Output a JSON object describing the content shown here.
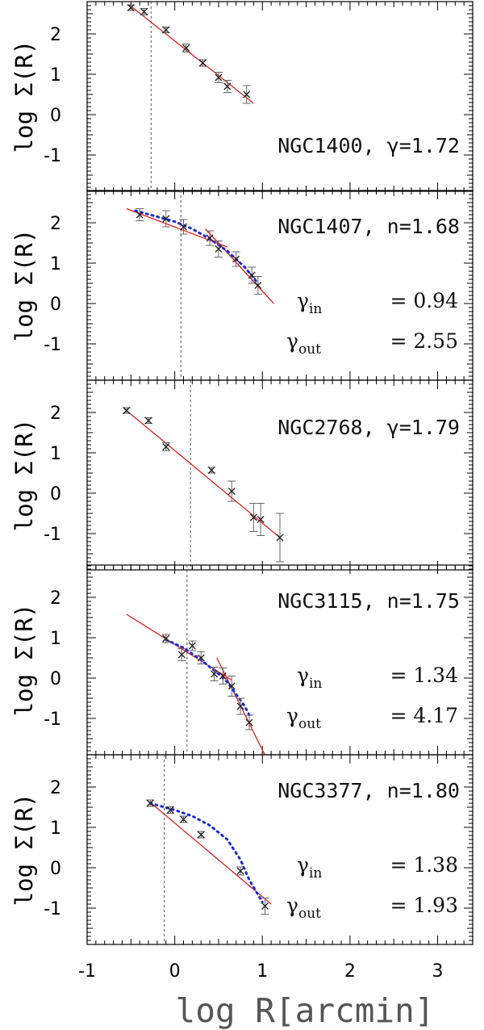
{
  "chart_data": {
    "type": "scatter",
    "x_axis": {
      "label": "log R[arcmin]",
      "range": [
        -1,
        3.4
      ],
      "ticks": [
        "-1",
        "0",
        "1",
        "2",
        "3"
      ]
    },
    "y_axis": {
      "label": "log Σ(R)",
      "range": [
        -1.9,
        2.8
      ],
      "ticks": [
        "2",
        "1",
        "0",
        "-1"
      ]
    },
    "panels": [
      {
        "galaxy": "NGC1400",
        "param": "γ=1.72",
        "vline_x": -0.27,
        "points": [
          {
            "x": -0.5,
            "y": 2.65,
            "err": 0.07
          },
          {
            "x": -0.35,
            "y": 2.55,
            "err": 0.08
          },
          {
            "x": -0.1,
            "y": 2.1,
            "err": 0.07
          },
          {
            "x": 0.13,
            "y": 1.65,
            "err": 0.1
          },
          {
            "x": 0.32,
            "y": 1.28,
            "err": 0.08
          },
          {
            "x": 0.5,
            "y": 0.92,
            "err": 0.13
          },
          {
            "x": 0.6,
            "y": 0.7,
            "err": 0.15
          },
          {
            "x": 0.82,
            "y": 0.5,
            "err": 0.22
          }
        ],
        "fit_lines": [
          {
            "x1": -0.52,
            "y1": 2.72,
            "x2": 0.9,
            "y2": 0.28
          }
        ],
        "dotted_curves": []
      },
      {
        "galaxy": "NGC1407",
        "param": "n=1.68",
        "gamma_in": "0.94",
        "gamma_out": "2.55",
        "vline_x": 0.07,
        "points": [
          {
            "x": -0.4,
            "y": 2.2,
            "err": 0.15
          },
          {
            "x": -0.1,
            "y": 2.1,
            "err": 0.2
          },
          {
            "x": 0.1,
            "y": 1.9,
            "err": 0.18
          },
          {
            "x": 0.4,
            "y": 1.62,
            "err": 0.18
          },
          {
            "x": 0.5,
            "y": 1.35,
            "err": 0.2
          },
          {
            "x": 0.7,
            "y": 1.1,
            "err": 0.18
          },
          {
            "x": 0.88,
            "y": 0.7,
            "err": 0.2
          },
          {
            "x": 0.95,
            "y": 0.45,
            "err": 0.22
          }
        ],
        "fit_lines": [
          {
            "x1": -0.55,
            "y1": 2.35,
            "x2": 0.6,
            "y2": 1.4
          },
          {
            "x1": 0.35,
            "y1": 1.85,
            "x2": 1.13,
            "y2": 0.0
          }
        ],
        "dotted_curves": [
          [
            [
              -0.45,
              2.3
            ],
            [
              -0.2,
              2.15
            ],
            [
              0.0,
              2.03
            ],
            [
              0.2,
              1.85
            ],
            [
              0.4,
              1.6
            ],
            [
              0.6,
              1.3
            ],
            [
              0.8,
              0.9
            ],
            [
              0.93,
              0.55
            ]
          ]
        ]
      },
      {
        "galaxy": "NGC2768",
        "param": "γ=1.79",
        "vline_x": 0.18,
        "points": [
          {
            "x": -0.55,
            "y": 2.05,
            "err": 0.07
          },
          {
            "x": -0.3,
            "y": 1.8,
            "err": 0.07
          },
          {
            "x": -0.1,
            "y": 1.15,
            "err": 0.1
          },
          {
            "x": 0.42,
            "y": 0.57,
            "err": 0.07
          },
          {
            "x": 0.65,
            "y": 0.05,
            "err": 0.25
          },
          {
            "x": 0.9,
            "y": -0.6,
            "err": 0.35
          },
          {
            "x": 0.98,
            "y": -0.65,
            "err": 0.4
          },
          {
            "x": 1.2,
            "y": -1.1,
            "err": 0.6
          }
        ],
        "fit_lines": [
          {
            "x1": -0.58,
            "y1": 2.1,
            "x2": 1.2,
            "y2": -1.1
          }
        ],
        "dotted_curves": []
      },
      {
        "galaxy": "NGC3115",
        "param": "n=1.75",
        "gamma_in": "1.34",
        "gamma_out": "4.17",
        "vline_x": 0.14,
        "points": [
          {
            "x": -0.1,
            "y": 0.98,
            "err": 0.1
          },
          {
            "x": 0.08,
            "y": 0.58,
            "err": 0.15
          },
          {
            "x": 0.2,
            "y": 0.8,
            "err": 0.12
          },
          {
            "x": 0.3,
            "y": 0.5,
            "err": 0.15
          },
          {
            "x": 0.45,
            "y": 0.1,
            "err": 0.17
          },
          {
            "x": 0.55,
            "y": 0.05,
            "err": 0.2
          },
          {
            "x": 0.65,
            "y": -0.2,
            "err": 0.25
          },
          {
            "x": 0.75,
            "y": -0.7,
            "err": 0.2
          },
          {
            "x": 0.85,
            "y": -1.1,
            "err": 0.18
          }
        ],
        "fit_lines": [
          {
            "x1": -0.55,
            "y1": 1.58,
            "x2": 0.65,
            "y2": -0.05
          },
          {
            "x1": 0.48,
            "y1": 0.5,
            "x2": 1.05,
            "y2": -2.0
          }
        ],
        "dotted_curves": [
          [
            [
              -0.1,
              0.95
            ],
            [
              0.1,
              0.75
            ],
            [
              0.3,
              0.45
            ],
            [
              0.5,
              0.1
            ],
            [
              0.6,
              -0.1
            ],
            [
              0.7,
              -0.4
            ],
            [
              0.8,
              -0.7
            ],
            [
              0.87,
              -1.0
            ]
          ]
        ]
      },
      {
        "galaxy": "NGC3377",
        "param": "n=1.80",
        "gamma_in": "1.38",
        "gamma_out": "1.93",
        "vline_x": -0.12,
        "points": [
          {
            "x": -0.28,
            "y": 1.6,
            "err": 0.08
          },
          {
            "x": -0.05,
            "y": 1.43,
            "err": 0.08
          },
          {
            "x": 0.1,
            "y": 1.2,
            "err": 0.08
          },
          {
            "x": 0.3,
            "y": 0.82,
            "err": 0.08
          },
          {
            "x": 0.75,
            "y": -0.08,
            "err": 0.1
          },
          {
            "x": 1.03,
            "y": -0.95,
            "err": 0.2
          }
        ],
        "fit_lines": [
          {
            "x1": -0.28,
            "y1": 1.62,
            "x2": 1.1,
            "y2": -0.9
          }
        ],
        "dotted_curves": [
          [
            [
              -0.28,
              1.6
            ],
            [
              0.0,
              1.43
            ],
            [
              0.2,
              1.28
            ],
            [
              0.4,
              1.05
            ],
            [
              0.6,
              0.7
            ],
            [
              0.75,
              0.2
            ],
            [
              0.85,
              -0.3
            ],
            [
              1.0,
              -0.85
            ]
          ]
        ]
      }
    ]
  },
  "colors": {
    "fit_line": "#e02020",
    "dotted_curve": "#1a2bd8",
    "points": "#222222",
    "error_bars": "#666666",
    "vline": "#555555",
    "frame": "#000000"
  }
}
